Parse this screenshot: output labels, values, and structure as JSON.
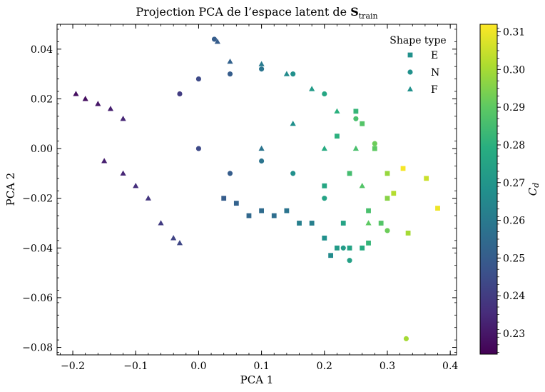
{
  "chart_data": {
    "type": "scatter",
    "title": "Projection PCA de l’espace latent de ",
    "title_bold": "S",
    "title_sub": "train",
    "xlabel": "PCA 1",
    "ylabel": "PCA 2",
    "xlim": [
      -0.225,
      0.41
    ],
    "ylim": [
      -0.083,
      0.05
    ],
    "xticks": [
      -0.2,
      -0.1,
      0.0,
      0.1,
      0.2,
      0.3,
      0.4
    ],
    "xtick_labels": [
      "−0.2",
      "−0.1",
      "0.0",
      "0.1",
      "0.2",
      "0.3",
      "0.4"
    ],
    "yticks": [
      0.04,
      0.02,
      0.0,
      -0.02,
      -0.04,
      -0.06,
      -0.08
    ],
    "ytick_labels": [
      "0.04",
      "0.02",
      "0.00",
      "−0.02",
      "−0.04",
      "−0.06",
      "−0.08"
    ],
    "grid": false,
    "legend": {
      "title": "Shape type",
      "placement": "top-right",
      "entries": [
        {
          "label": "E",
          "marker": "square"
        },
        {
          "label": "N",
          "marker": "circle"
        },
        {
          "label": "F",
          "marker": "triangle"
        }
      ],
      "color": "#21918c"
    },
    "colorbar": {
      "label": "C",
      "label_sub": "d",
      "range": [
        0.2245,
        0.312
      ],
      "ticks": [
        0.23,
        0.24,
        0.25,
        0.26,
        0.27,
        0.28,
        0.29,
        0.3,
        0.31
      ],
      "tick_labels": [
        "0.23",
        "0.24",
        "0.25",
        "0.26",
        "0.27",
        "0.28",
        "0.29",
        "0.30",
        "0.31"
      ],
      "colormap": "viridis"
    },
    "series": [
      {
        "name": "E",
        "marker": "square",
        "points": [
          [
            0.38,
            -0.024,
            0.31
          ],
          [
            0.362,
            -0.012,
            0.305
          ],
          [
            0.333,
            -0.034,
            0.3
          ],
          [
            0.325,
            -0.008,
            0.311
          ],
          [
            0.3,
            -0.02,
            0.296
          ],
          [
            0.29,
            -0.03,
            0.288
          ],
          [
            0.27,
            -0.038,
            0.282
          ],
          [
            0.26,
            -0.04,
            0.278
          ],
          [
            0.24,
            -0.04,
            0.275
          ],
          [
            0.22,
            -0.04,
            0.272
          ],
          [
            0.21,
            -0.043,
            0.266
          ],
          [
            0.2,
            -0.036,
            0.268
          ],
          [
            0.18,
            -0.03,
            0.262
          ],
          [
            0.16,
            -0.03,
            0.262
          ],
          [
            0.14,
            -0.025,
            0.258
          ],
          [
            0.12,
            -0.027,
            0.256
          ],
          [
            0.1,
            -0.025,
            0.255
          ],
          [
            0.08,
            -0.027,
            0.254
          ],
          [
            0.06,
            -0.022,
            0.252
          ],
          [
            0.04,
            -0.02,
            0.25
          ],
          [
            0.28,
            0.0,
            0.29
          ],
          [
            0.26,
            0.01,
            0.288
          ],
          [
            0.25,
            0.015,
            0.282
          ],
          [
            0.24,
            -0.01,
            0.285
          ],
          [
            0.22,
            0.005,
            0.28
          ],
          [
            0.2,
            -0.015,
            0.276
          ],
          [
            0.3,
            -0.01,
            0.298
          ],
          [
            0.31,
            -0.018,
            0.302
          ],
          [
            0.27,
            -0.025,
            0.286
          ],
          [
            0.23,
            -0.03,
            0.275
          ]
        ]
      },
      {
        "name": "N",
        "marker": "circle",
        "points": [
          [
            0.33,
            -0.0765,
            0.3
          ],
          [
            0.025,
            0.044,
            0.25
          ],
          [
            -0.03,
            0.022,
            0.24
          ],
          [
            0.0,
            0.028,
            0.244
          ],
          [
            0.05,
            0.03,
            0.25
          ],
          [
            0.1,
            0.032,
            0.258
          ],
          [
            0.15,
            0.03,
            0.268
          ],
          [
            0.2,
            0.022,
            0.276
          ],
          [
            0.25,
            0.012,
            0.286
          ],
          [
            0.28,
            0.002,
            0.292
          ],
          [
            0.15,
            -0.01,
            0.268
          ],
          [
            0.1,
            -0.005,
            0.258
          ],
          [
            0.05,
            -0.01,
            0.25
          ],
          [
            0.0,
            0.0,
            0.244
          ],
          [
            0.2,
            -0.02,
            0.275
          ],
          [
            0.24,
            -0.045,
            0.274
          ],
          [
            0.23,
            -0.04,
            0.272
          ],
          [
            0.3,
            -0.033,
            0.292
          ]
        ]
      },
      {
        "name": "F",
        "marker": "triangle",
        "points": [
          [
            -0.195,
            0.022,
            0.228
          ],
          [
            -0.18,
            0.02,
            0.228
          ],
          [
            -0.16,
            0.018,
            0.23
          ],
          [
            -0.14,
            0.016,
            0.232
          ],
          [
            -0.12,
            0.012,
            0.234
          ],
          [
            -0.15,
            -0.005,
            0.232
          ],
          [
            -0.12,
            -0.01,
            0.234
          ],
          [
            -0.1,
            -0.015,
            0.236
          ],
          [
            -0.08,
            -0.02,
            0.238
          ],
          [
            -0.06,
            -0.03,
            0.24
          ],
          [
            -0.04,
            -0.036,
            0.242
          ],
          [
            -0.03,
            -0.038,
            0.243
          ],
          [
            0.03,
            0.043,
            0.25
          ],
          [
            0.05,
            0.035,
            0.252
          ],
          [
            0.1,
            0.034,
            0.26
          ],
          [
            0.14,
            0.03,
            0.266
          ],
          [
            0.18,
            0.024,
            0.272
          ],
          [
            0.22,
            0.015,
            0.28
          ],
          [
            0.2,
            0.0,
            0.278
          ],
          [
            0.25,
            0.0,
            0.286
          ],
          [
            0.26,
            -0.015,
            0.288
          ],
          [
            0.27,
            -0.03,
            0.29
          ],
          [
            0.15,
            0.01,
            0.268
          ],
          [
            0.1,
            0.0,
            0.258
          ]
        ]
      }
    ]
  }
}
